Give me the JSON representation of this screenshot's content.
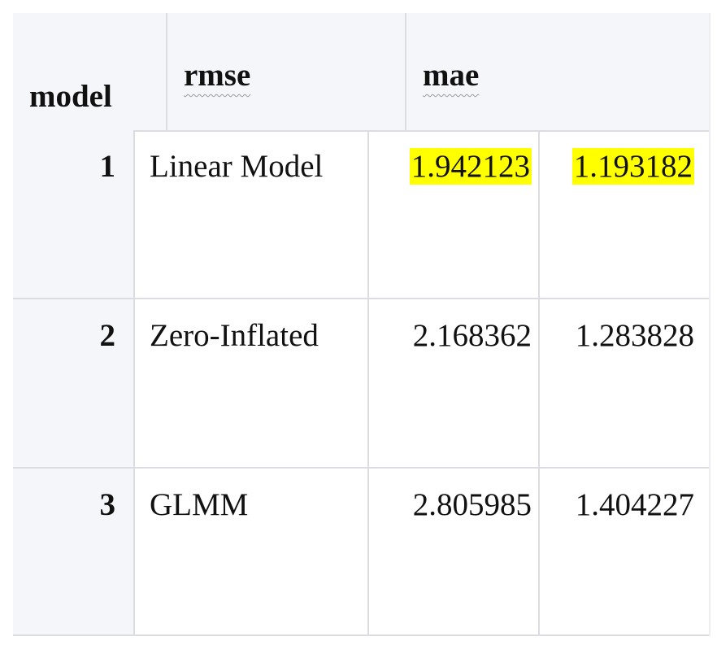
{
  "table": {
    "headers": {
      "model": "model",
      "rmse": "rmse",
      "mae": "mae"
    },
    "rows": [
      {
        "index": "1",
        "name": "Linear Model",
        "rmse": "1.942123",
        "mae": "1.193182",
        "highlighted": true
      },
      {
        "index": "2",
        "name": "Zero-Inflated",
        "rmse": "2.168362",
        "mae": "1.283828",
        "highlighted": false
      },
      {
        "index": "3",
        "name": "GLMM",
        "rmse": "2.805985",
        "mae": "1.404227",
        "highlighted": false
      }
    ],
    "colors": {
      "highlight": "#ffff00",
      "header_bg": "#f5f6f9",
      "border": "#dcdde2"
    }
  }
}
